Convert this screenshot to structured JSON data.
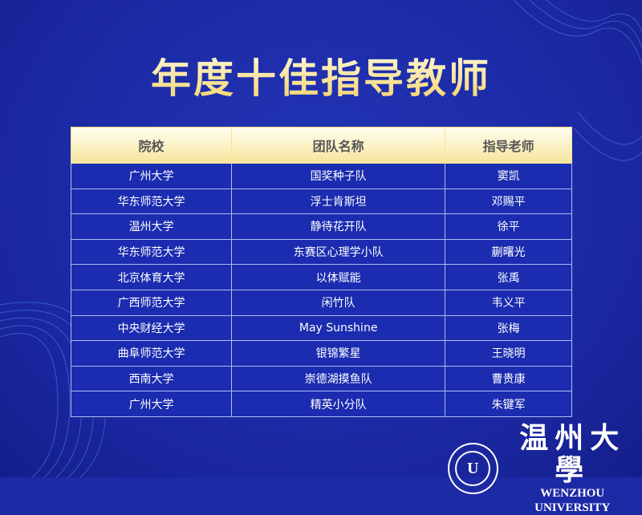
{
  "title": "年度十佳指导教师",
  "table": {
    "headers": [
      "院校",
      "团队名称",
      "指导老师"
    ],
    "rows": [
      [
        "广州大学",
        "国奖种子队",
        "窦凯"
      ],
      [
        "华东师范大学",
        "浮士肯斯坦",
        "邓赐平"
      ],
      [
        "温州大学",
        "静待花开队",
        "徐平"
      ],
      [
        "华东师范大学",
        "东赛区心理学小队",
        "蒯曙光"
      ],
      [
        "北京体育大学",
        "以体赋能",
        "张禹"
      ],
      [
        "广西师范大学",
        "闲竹队",
        "韦义平"
      ],
      [
        "中央财经大学",
        "May Sunshine",
        "张梅"
      ],
      [
        "曲阜师范大学",
        "银锦繁星",
        "王晓明"
      ],
      [
        "西南大学",
        "崇德湖摸鱼队",
        "曹贵康"
      ],
      [
        "广州大学",
        "精英小分队",
        "朱键军"
      ]
    ]
  },
  "logo": {
    "cn": "温州大學",
    "en": "WENZHOU UNIVERSITY",
    "seal": "U"
  },
  "colors": {
    "background": "#1c2aa6",
    "header": "#f6e49a",
    "title": "#f3d36a"
  }
}
